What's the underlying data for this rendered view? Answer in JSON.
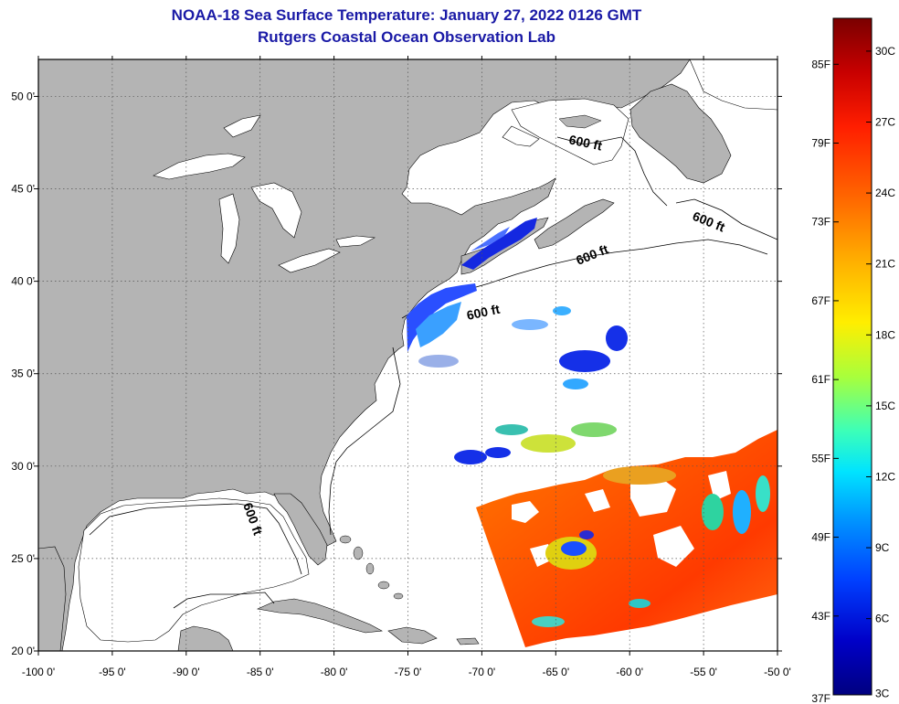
{
  "header": {
    "title": "NOAA-18 Sea Surface Temperature:  January 27, 2022 0126 GMT",
    "subtitle": "Rutgers Coastal Ocean Observation Lab"
  },
  "map": {
    "lon_range": [
      -100,
      -50
    ],
    "lat_range": [
      20,
      52
    ],
    "lon_labels": [
      "-100 0'",
      "-95 0'",
      "-90 0'",
      "-85 0'",
      "-80 0'",
      "-75 0'",
      "-70 0'",
      "-65 0'",
      "-60 0'",
      "-55 0'",
      "-50 0'"
    ],
    "lat_labels": [
      "50 0'",
      "45 0'",
      "40 0'",
      "35 0'",
      "30 0'",
      "25 0'",
      "20 0'"
    ],
    "land_color": "#b4b4b4",
    "ocean_color": "#ffffff",
    "grid": "dotted",
    "contour_label": "600 ft"
  },
  "colorbar": {
    "fahrenheit_labels": [
      "85F",
      "79F",
      "73F",
      "67F",
      "61F",
      "55F",
      "49F",
      "43F",
      "37F"
    ],
    "celsius_labels": [
      "30C",
      "27C",
      "24C",
      "21C",
      "18C",
      "15C",
      "12C",
      "9C",
      "6C",
      "3C"
    ],
    "gradient_colors": [
      "#7a0000",
      "#c80000",
      "#ff1e00",
      "#ff6a00",
      "#ffb000",
      "#ffee00",
      "#a8ff3c",
      "#3cffb8",
      "#00e4ff",
      "#0096ff",
      "#0040ff",
      "#0000c8",
      "#000080"
    ]
  }
}
